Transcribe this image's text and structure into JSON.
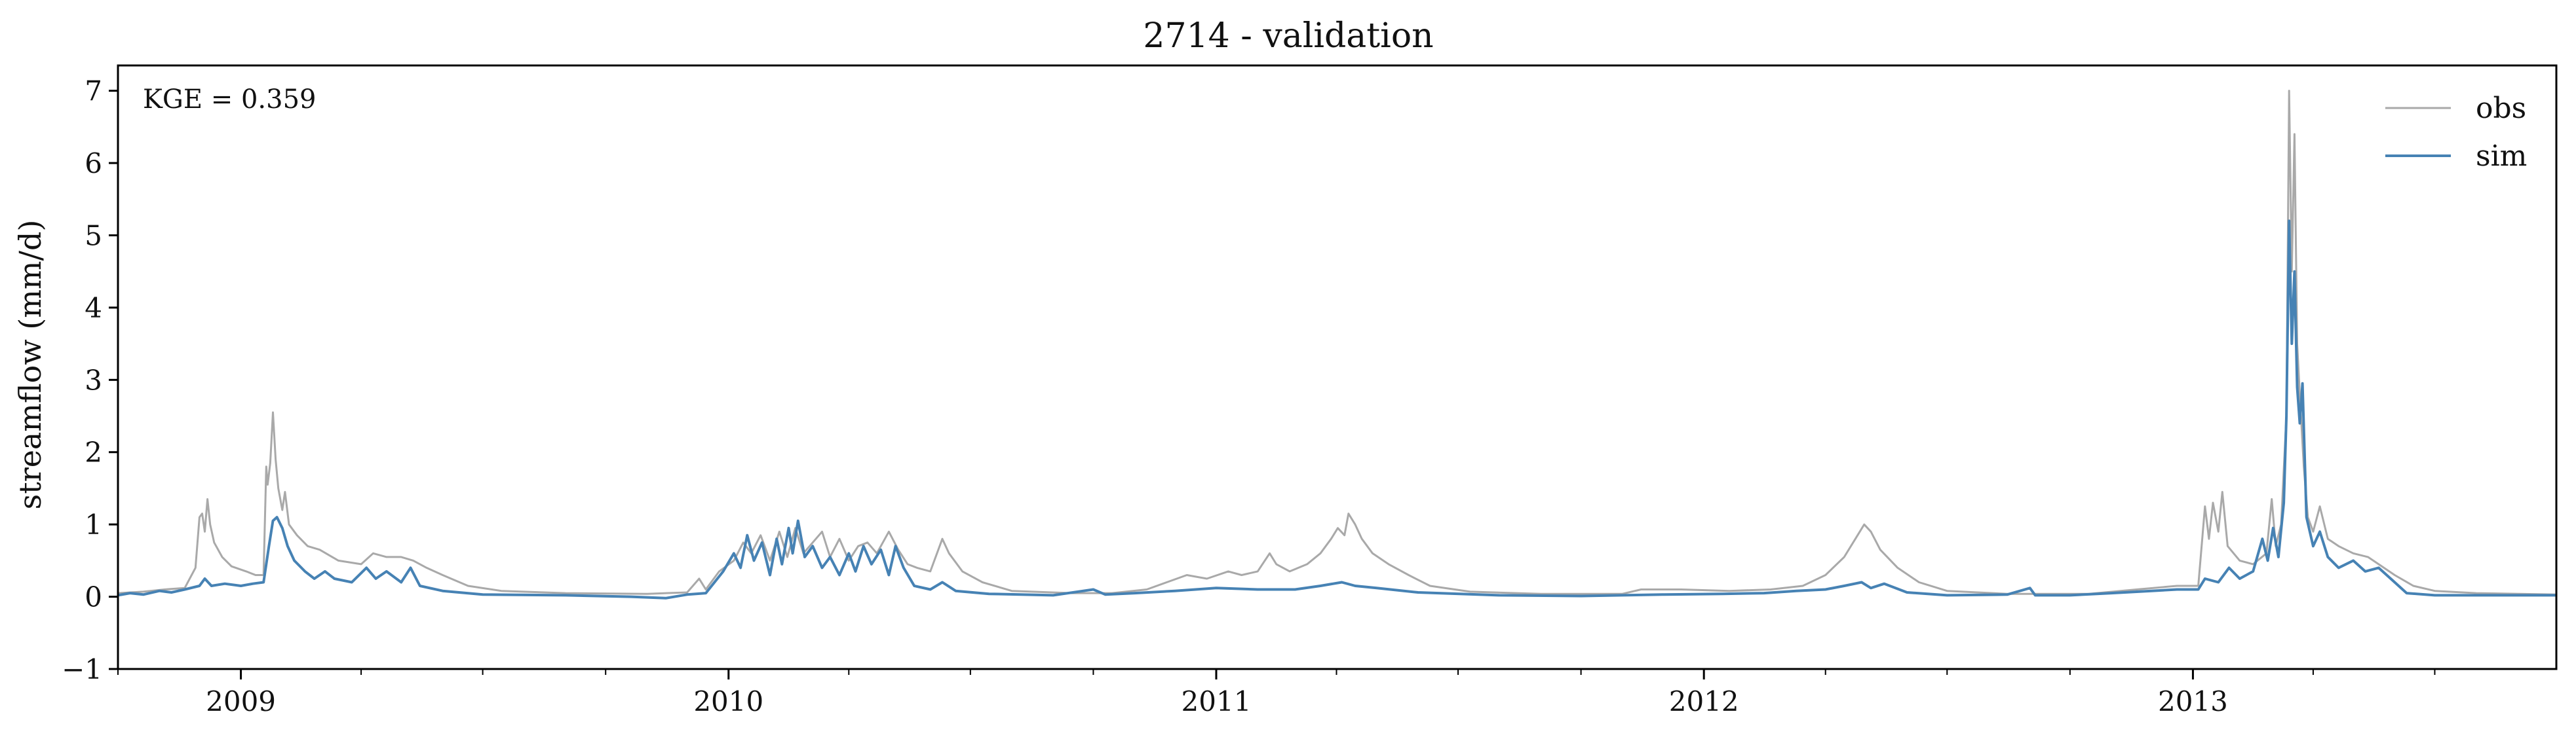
{
  "chart_data": {
    "type": "line",
    "title": "2714 - validation",
    "xlabel": "",
    "ylabel": "streamflow (mm/d)",
    "xlim": [
      "2008-10-01",
      "2013-09-30"
    ],
    "ylim": [
      -1,
      7.35
    ],
    "yticks": [
      -1,
      0,
      1,
      2,
      3,
      4,
      5,
      6,
      7
    ],
    "ytick_labels": [
      "−1",
      "0",
      "1",
      "2",
      "3",
      "4",
      "5",
      "6",
      "7"
    ],
    "xticks": [
      "2009-01-01",
      "2010-01-01",
      "2011-01-01",
      "2012-01-01",
      "2013-01-01"
    ],
    "xtick_labels": [
      "2009",
      "2010",
      "2011",
      "2012",
      "2013"
    ],
    "grid": false,
    "legend_position": "top-right",
    "annotation": "KGE = 0.359",
    "colors": {
      "obs": "#a9a9a9",
      "sim": "#4682b4"
    },
    "series": [
      {
        "name": "obs",
        "points": [
          [
            "2008-10-01",
            0.05
          ],
          [
            "2008-10-20",
            0.07
          ],
          [
            "2008-11-05",
            0.1
          ],
          [
            "2008-11-20",
            0.12
          ],
          [
            "2008-11-28",
            0.4
          ],
          [
            "2008-12-01",
            1.1
          ],
          [
            "2008-12-03",
            1.15
          ],
          [
            "2008-12-05",
            0.9
          ],
          [
            "2008-12-07",
            1.35
          ],
          [
            "2008-12-09",
            1.0
          ],
          [
            "2008-12-12",
            0.75
          ],
          [
            "2008-12-18",
            0.55
          ],
          [
            "2008-12-25",
            0.42
          ],
          [
            "2009-01-05",
            0.35
          ],
          [
            "2009-01-12",
            0.3
          ],
          [
            "2009-01-18",
            0.3
          ],
          [
            "2009-01-20",
            1.8
          ],
          [
            "2009-01-21",
            1.55
          ],
          [
            "2009-01-23",
            1.85
          ],
          [
            "2009-01-25",
            2.55
          ],
          [
            "2009-01-27",
            1.9
          ],
          [
            "2009-01-29",
            1.5
          ],
          [
            "2009-02-01",
            1.2
          ],
          [
            "2009-02-03",
            1.45
          ],
          [
            "2009-02-06",
            1.0
          ],
          [
            "2009-02-12",
            0.85
          ],
          [
            "2009-02-20",
            0.7
          ],
          [
            "2009-03-01",
            0.65
          ],
          [
            "2009-03-15",
            0.5
          ],
          [
            "2009-04-01",
            0.45
          ],
          [
            "2009-04-10",
            0.6
          ],
          [
            "2009-04-20",
            0.55
          ],
          [
            "2009-05-01",
            0.55
          ],
          [
            "2009-05-10",
            0.5
          ],
          [
            "2009-05-20",
            0.4
          ],
          [
            "2009-06-01",
            0.3
          ],
          [
            "2009-06-20",
            0.15
          ],
          [
            "2009-07-15",
            0.08
          ],
          [
            "2009-09-01",
            0.05
          ],
          [
            "2009-11-01",
            0.04
          ],
          [
            "2009-12-01",
            0.06
          ],
          [
            "2009-12-10",
            0.25
          ],
          [
            "2009-12-15",
            0.1
          ],
          [
            "2009-12-25",
            0.35
          ],
          [
            "2010-01-05",
            0.5
          ],
          [
            "2010-01-12",
            0.75
          ],
          [
            "2010-01-18",
            0.6
          ],
          [
            "2010-01-25",
            0.85
          ],
          [
            "2010-02-01",
            0.5
          ],
          [
            "2010-02-08",
            0.9
          ],
          [
            "2010-02-14",
            0.55
          ],
          [
            "2010-02-20",
            0.95
          ],
          [
            "2010-02-26",
            0.6
          ],
          [
            "2010-03-05",
            0.75
          ],
          [
            "2010-03-12",
            0.9
          ],
          [
            "2010-03-18",
            0.55
          ],
          [
            "2010-03-25",
            0.8
          ],
          [
            "2010-04-01",
            0.5
          ],
          [
            "2010-04-08",
            0.7
          ],
          [
            "2010-04-15",
            0.75
          ],
          [
            "2010-04-22",
            0.6
          ],
          [
            "2010-05-01",
            0.9
          ],
          [
            "2010-05-08",
            0.65
          ],
          [
            "2010-05-15",
            0.45
          ],
          [
            "2010-05-22",
            0.4
          ],
          [
            "2010-06-01",
            0.35
          ],
          [
            "2010-06-10",
            0.8
          ],
          [
            "2010-06-15",
            0.6
          ],
          [
            "2010-06-25",
            0.35
          ],
          [
            "2010-07-10",
            0.2
          ],
          [
            "2010-08-01",
            0.08
          ],
          [
            "2010-09-15",
            0.05
          ],
          [
            "2010-10-15",
            0.05
          ],
          [
            "2010-11-10",
            0.1
          ],
          [
            "2010-11-25",
            0.2
          ],
          [
            "2010-12-10",
            0.3
          ],
          [
            "2010-12-25",
            0.25
          ],
          [
            "2011-01-10",
            0.35
          ],
          [
            "2011-01-20",
            0.3
          ],
          [
            "2011-02-01",
            0.35
          ],
          [
            "2011-02-10",
            0.6
          ],
          [
            "2011-02-15",
            0.45
          ],
          [
            "2011-02-25",
            0.35
          ],
          [
            "2011-03-10",
            0.45
          ],
          [
            "2011-03-20",
            0.6
          ],
          [
            "2011-03-28",
            0.8
          ],
          [
            "2011-04-02",
            0.95
          ],
          [
            "2011-04-07",
            0.85
          ],
          [
            "2011-04-10",
            1.15
          ],
          [
            "2011-04-15",
            1.0
          ],
          [
            "2011-04-20",
            0.8
          ],
          [
            "2011-04-28",
            0.6
          ],
          [
            "2011-05-10",
            0.45
          ],
          [
            "2011-05-25",
            0.3
          ],
          [
            "2011-06-10",
            0.15
          ],
          [
            "2011-07-10",
            0.07
          ],
          [
            "2011-09-01",
            0.04
          ],
          [
            "2011-11-01",
            0.04
          ],
          [
            "2011-11-15",
            0.1
          ],
          [
            "2011-12-15",
            0.1
          ],
          [
            "2012-01-20",
            0.08
          ],
          [
            "2012-02-20",
            0.1
          ],
          [
            "2012-03-15",
            0.15
          ],
          [
            "2012-04-01",
            0.3
          ],
          [
            "2012-04-15",
            0.55
          ],
          [
            "2012-04-25",
            0.85
          ],
          [
            "2012-04-30",
            1.0
          ],
          [
            "2012-05-05",
            0.9
          ],
          [
            "2012-05-12",
            0.65
          ],
          [
            "2012-05-25",
            0.4
          ],
          [
            "2012-06-10",
            0.2
          ],
          [
            "2012-07-01",
            0.08
          ],
          [
            "2012-08-15",
            0.04
          ],
          [
            "2012-10-15",
            0.04
          ],
          [
            "2012-11-20",
            0.1
          ],
          [
            "2012-12-20",
            0.15
          ],
          [
            "2013-01-05",
            0.15
          ],
          [
            "2013-01-10",
            1.25
          ],
          [
            "2013-01-13",
            0.8
          ],
          [
            "2013-01-16",
            1.3
          ],
          [
            "2013-01-20",
            0.9
          ],
          [
            "2013-01-23",
            1.45
          ],
          [
            "2013-01-27",
            0.7
          ],
          [
            "2013-02-05",
            0.5
          ],
          [
            "2013-02-15",
            0.45
          ],
          [
            "2013-02-25",
            0.6
          ],
          [
            "2013-03-01",
            1.35
          ],
          [
            "2013-03-04",
            0.7
          ],
          [
            "2013-03-08",
            1.0
          ],
          [
            "2013-03-12",
            2.5
          ],
          [
            "2013-03-14",
            7.0
          ],
          [
            "2013-03-16",
            4.5
          ],
          [
            "2013-03-18",
            6.4
          ],
          [
            "2013-03-20",
            3.5
          ],
          [
            "2013-03-22",
            2.8
          ],
          [
            "2013-03-25",
            1.8
          ],
          [
            "2013-03-28",
            1.1
          ],
          [
            "2013-04-01",
            0.9
          ],
          [
            "2013-04-06",
            1.25
          ],
          [
            "2013-04-12",
            0.8
          ],
          [
            "2013-04-20",
            0.7
          ],
          [
            "2013-05-01",
            0.6
          ],
          [
            "2013-05-12",
            0.55
          ],
          [
            "2013-05-20",
            0.45
          ],
          [
            "2013-06-01",
            0.3
          ],
          [
            "2013-06-15",
            0.15
          ],
          [
            "2013-07-01",
            0.08
          ],
          [
            "2013-08-01",
            0.05
          ],
          [
            "2013-09-30",
            0.03
          ]
        ]
      },
      {
        "name": "sim",
        "points": [
          [
            "2008-10-01",
            0.02
          ],
          [
            "2008-10-10",
            0.05
          ],
          [
            "2008-10-20",
            0.03
          ],
          [
            "2008-11-01",
            0.08
          ],
          [
            "2008-11-10",
            0.06
          ],
          [
            "2008-11-20",
            0.1
          ],
          [
            "2008-12-01",
            0.15
          ],
          [
            "2008-12-05",
            0.25
          ],
          [
            "2008-12-10",
            0.15
          ],
          [
            "2008-12-20",
            0.18
          ],
          [
            "2009-01-01",
            0.15
          ],
          [
            "2009-01-10",
            0.18
          ],
          [
            "2009-01-18",
            0.2
          ],
          [
            "2009-01-22",
            0.7
          ],
          [
            "2009-01-25",
            1.05
          ],
          [
            "2009-01-28",
            1.1
          ],
          [
            "2009-02-01",
            0.95
          ],
          [
            "2009-02-05",
            0.7
          ],
          [
            "2009-02-10",
            0.5
          ],
          [
            "2009-02-18",
            0.35
          ],
          [
            "2009-02-25",
            0.25
          ],
          [
            "2009-03-05",
            0.35
          ],
          [
            "2009-03-12",
            0.25
          ],
          [
            "2009-03-25",
            0.2
          ],
          [
            "2009-04-05",
            0.4
          ],
          [
            "2009-04-12",
            0.25
          ],
          [
            "2009-04-20",
            0.35
          ],
          [
            "2009-05-01",
            0.2
          ],
          [
            "2009-05-08",
            0.4
          ],
          [
            "2009-05-15",
            0.15
          ],
          [
            "2009-06-01",
            0.08
          ],
          [
            "2009-07-01",
            0.03
          ],
          [
            "2009-09-01",
            0.02
          ],
          [
            "2009-10-20",
            0.0
          ],
          [
            "2009-11-15",
            -0.02
          ],
          [
            "2009-12-01",
            0.03
          ],
          [
            "2009-12-15",
            0.05
          ],
          [
            "2009-12-28",
            0.35
          ],
          [
            "2010-01-05",
            0.6
          ],
          [
            "2010-01-10",
            0.4
          ],
          [
            "2010-01-15",
            0.85
          ],
          [
            "2010-01-20",
            0.5
          ],
          [
            "2010-01-26",
            0.75
          ],
          [
            "2010-02-01",
            0.3
          ],
          [
            "2010-02-06",
            0.8
          ],
          [
            "2010-02-10",
            0.45
          ],
          [
            "2010-02-15",
            0.95
          ],
          [
            "2010-02-18",
            0.6
          ],
          [
            "2010-02-22",
            1.05
          ],
          [
            "2010-02-27",
            0.55
          ],
          [
            "2010-03-05",
            0.7
          ],
          [
            "2010-03-12",
            0.4
          ],
          [
            "2010-03-18",
            0.55
          ],
          [
            "2010-03-25",
            0.3
          ],
          [
            "2010-04-01",
            0.6
          ],
          [
            "2010-04-06",
            0.35
          ],
          [
            "2010-04-12",
            0.7
          ],
          [
            "2010-04-18",
            0.45
          ],
          [
            "2010-04-25",
            0.65
          ],
          [
            "2010-05-01",
            0.3
          ],
          [
            "2010-05-06",
            0.7
          ],
          [
            "2010-05-12",
            0.4
          ],
          [
            "2010-05-20",
            0.15
          ],
          [
            "2010-06-01",
            0.1
          ],
          [
            "2010-06-10",
            0.2
          ],
          [
            "2010-06-20",
            0.08
          ],
          [
            "2010-07-15",
            0.04
          ],
          [
            "2010-09-01",
            0.02
          ],
          [
            "2010-10-01",
            0.1
          ],
          [
            "2010-10-10",
            0.03
          ],
          [
            "2010-11-01",
            0.05
          ],
          [
            "2010-12-01",
            0.08
          ],
          [
            "2011-01-01",
            0.12
          ],
          [
            "2011-02-01",
            0.1
          ],
          [
            "2011-03-01",
            0.1
          ],
          [
            "2011-03-20",
            0.15
          ],
          [
            "2011-04-05",
            0.2
          ],
          [
            "2011-04-15",
            0.15
          ],
          [
            "2011-05-01",
            0.12
          ],
          [
            "2011-06-01",
            0.06
          ],
          [
            "2011-08-01",
            0.02
          ],
          [
            "2011-10-01",
            0.01
          ],
          [
            "2011-12-01",
            0.03
          ],
          [
            "2012-01-15",
            0.04
          ],
          [
            "2012-02-15",
            0.05
          ],
          [
            "2012-03-10",
            0.08
          ],
          [
            "2012-04-01",
            0.1
          ],
          [
            "2012-04-15",
            0.15
          ],
          [
            "2012-04-28",
            0.2
          ],
          [
            "2012-05-05",
            0.12
          ],
          [
            "2012-05-15",
            0.18
          ],
          [
            "2012-06-01",
            0.06
          ],
          [
            "2012-07-01",
            0.02
          ],
          [
            "2012-08-15",
            0.03
          ],
          [
            "2012-09-01",
            0.12
          ],
          [
            "2012-09-05",
            0.02
          ],
          [
            "2012-10-01",
            0.02
          ],
          [
            "2012-11-01",
            0.05
          ],
          [
            "2012-12-01",
            0.08
          ],
          [
            "2012-12-20",
            0.1
          ],
          [
            "2013-01-05",
            0.1
          ],
          [
            "2013-01-10",
            0.25
          ],
          [
            "2013-01-20",
            0.2
          ],
          [
            "2013-01-28",
            0.4
          ],
          [
            "2013-02-05",
            0.25
          ],
          [
            "2013-02-15",
            0.35
          ],
          [
            "2013-02-22",
            0.8
          ],
          [
            "2013-02-26",
            0.5
          ],
          [
            "2013-03-02",
            0.95
          ],
          [
            "2013-03-06",
            0.55
          ],
          [
            "2013-03-10",
            1.3
          ],
          [
            "2013-03-12",
            2.5
          ],
          [
            "2013-03-14",
            5.2
          ],
          [
            "2013-03-16",
            3.5
          ],
          [
            "2013-03-18",
            4.5
          ],
          [
            "2013-03-20",
            2.9
          ],
          [
            "2013-03-22",
            2.4
          ],
          [
            "2013-03-24",
            2.95
          ],
          [
            "2013-03-27",
            1.1
          ],
          [
            "2013-04-01",
            0.7
          ],
          [
            "2013-04-06",
            0.9
          ],
          [
            "2013-04-12",
            0.55
          ],
          [
            "2013-04-20",
            0.4
          ],
          [
            "2013-05-01",
            0.5
          ],
          [
            "2013-05-10",
            0.35
          ],
          [
            "2013-05-20",
            0.4
          ],
          [
            "2013-06-01",
            0.2
          ],
          [
            "2013-06-10",
            0.05
          ],
          [
            "2013-07-01",
            0.02
          ],
          [
            "2013-09-30",
            0.02
          ]
        ]
      }
    ]
  }
}
